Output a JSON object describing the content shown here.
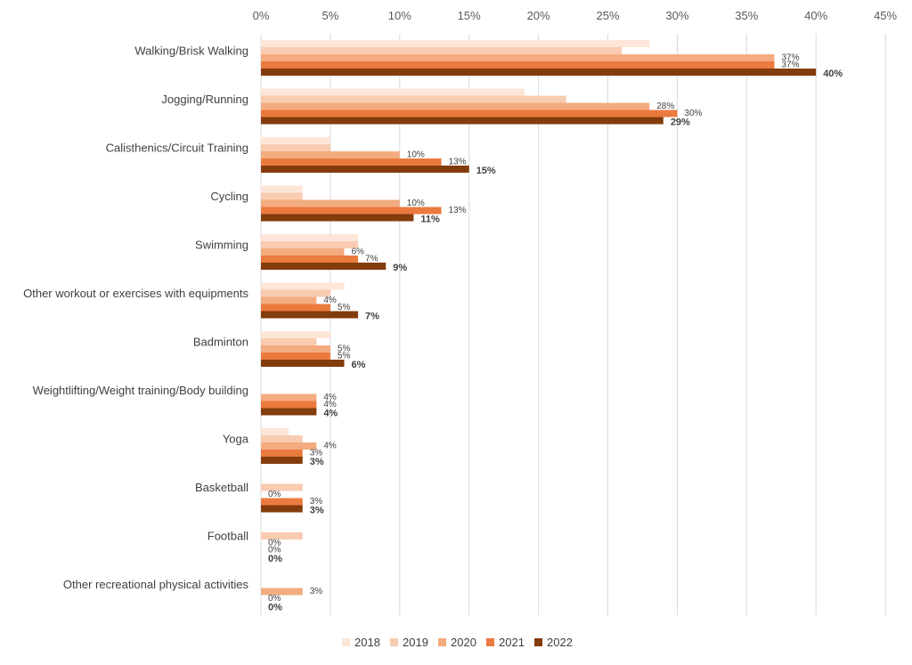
{
  "chart_data": {
    "type": "bar",
    "orientation": "horizontal",
    "title": "",
    "xlabel": "",
    "ylabel": "",
    "xlim": [
      0,
      45
    ],
    "x_ticks": [
      "0%",
      "5%",
      "10%",
      "15%",
      "20%",
      "25%",
      "30%",
      "35%",
      "40%",
      "45%"
    ],
    "x_axis_position": "top",
    "grid": true,
    "legend_position": "bottom",
    "categories": [
      "Walking/Brisk Walking",
      "Jogging/Running",
      "Calisthenics/Circuit Training",
      "Cycling",
      "Swimming",
      "Other workout or exercises with equipments",
      "Badminton",
      "Weightlifting/Weight training/Body building",
      "Yoga",
      "Basketball",
      "Football",
      "Other recreational physical activities"
    ],
    "series": [
      {
        "name": "2018",
        "color": "#fde6d8",
        "values": [
          28,
          19,
          5,
          3,
          7,
          6,
          5,
          null,
          2,
          null,
          null,
          null
        ],
        "labels": [
          "",
          "",
          "",
          "",
          "",
          "",
          "",
          "",
          "",
          "",
          "",
          ""
        ]
      },
      {
        "name": "2019",
        "color": "#f9cbb0",
        "values": [
          26,
          22,
          5,
          3,
          7,
          5,
          4,
          null,
          3,
          3,
          3,
          null
        ],
        "labels": [
          "",
          "",
          "",
          "",
          "",
          "",
          "",
          "",
          "",
          "",
          "",
          ""
        ]
      },
      {
        "name": "2020",
        "color": "#f3ac80",
        "values": [
          37,
          28,
          10,
          10,
          6,
          4,
          5,
          4,
          4,
          0,
          0,
          3
        ],
        "labels": [
          "37%",
          "28%",
          "10%",
          "10%",
          "6%",
          "4%",
          "5%",
          "4%",
          "4%",
          "0%",
          "0%",
          "3%"
        ]
      },
      {
        "name": "2021",
        "color": "#eb7a3f",
        "values": [
          37,
          30,
          13,
          13,
          7,
          5,
          5,
          4,
          3,
          3,
          0,
          0
        ],
        "labels": [
          "37%",
          "30%",
          "13%",
          "13%",
          "7%",
          "5%",
          "5%",
          "4%",
          "3%",
          "3%",
          "0%",
          "0%"
        ]
      },
      {
        "name": "2022",
        "color": "#833c0b",
        "values": [
          40,
          29,
          15,
          11,
          9,
          7,
          6,
          4,
          3,
          3,
          0,
          0
        ],
        "labels": [
          "40%",
          "29%",
          "15%",
          "11%",
          "9%",
          "7%",
          "6%",
          "4%",
          "3%",
          "3%",
          "0%",
          "0%"
        ]
      }
    ]
  }
}
